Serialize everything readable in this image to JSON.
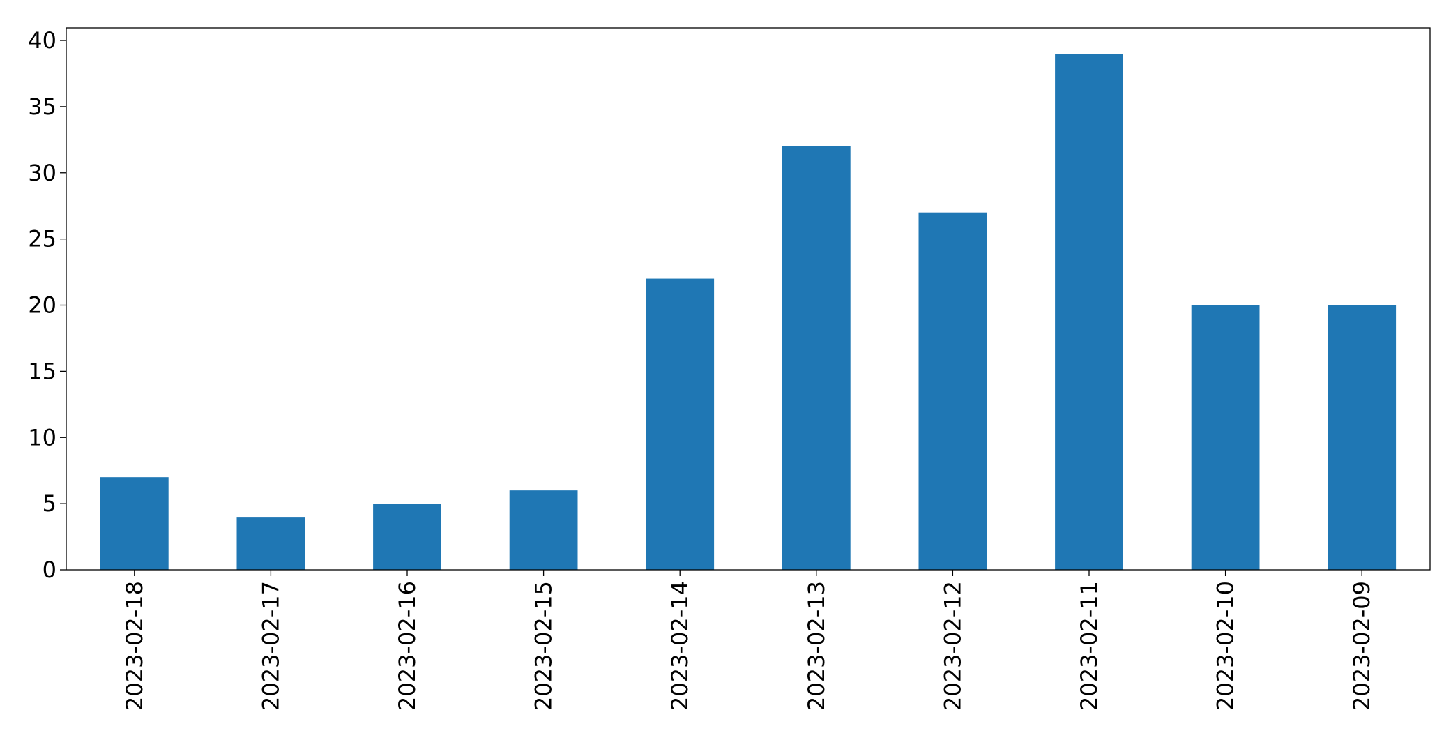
{
  "chart_data": {
    "type": "bar",
    "categories": [
      "2023-02-18",
      "2023-02-17",
      "2023-02-16",
      "2023-02-15",
      "2023-02-14",
      "2023-02-13",
      "2023-02-12",
      "2023-02-11",
      "2023-02-10",
      "2023-02-09"
    ],
    "values": [
      7,
      4,
      5,
      6,
      22,
      32,
      27,
      39,
      20,
      20
    ],
    "color": "#1f77b4",
    "ylim": [
      0,
      40.95
    ],
    "yticks": [
      0,
      5,
      10,
      15,
      20,
      25,
      30,
      35,
      40
    ],
    "grid": false
  }
}
